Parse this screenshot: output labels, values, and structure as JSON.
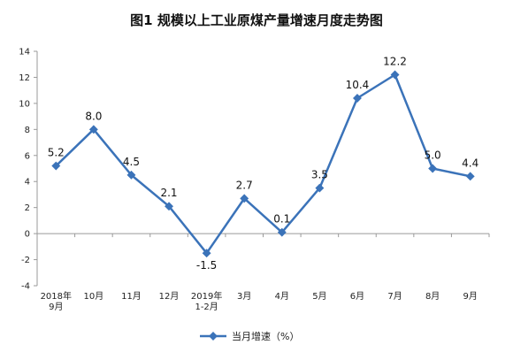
{
  "chart_data": {
    "type": "line",
    "title": "图1  规模以上工业原煤产量增速月度走势图",
    "categories": [
      "2018年\n9月",
      "10月",
      "11月",
      "12月",
      "2019年\n1-2月",
      "3月",
      "4月",
      "5月",
      "6月",
      "7月",
      "8月",
      "9月"
    ],
    "series": [
      {
        "name": "当月增速（%）",
        "values": [
          5.2,
          8.0,
          4.5,
          2.1,
          -1.5,
          2.7,
          0.1,
          3.5,
          10.4,
          12.2,
          5.0,
          4.4
        ],
        "labels": [
          "5.2",
          "8.0",
          "4.5",
          "2.1",
          "-1.5",
          "2.7",
          "0.1",
          "3.5",
          "10.4",
          "12.2",
          "5.0",
          "4.4"
        ]
      }
    ],
    "ylim": [
      -4,
      14
    ],
    "yticks": [
      -4,
      -2,
      0,
      2,
      4,
      6,
      8,
      10,
      12,
      14
    ],
    "legend": "bottom-center",
    "grid": false,
    "line_color": "#3b73b9"
  }
}
